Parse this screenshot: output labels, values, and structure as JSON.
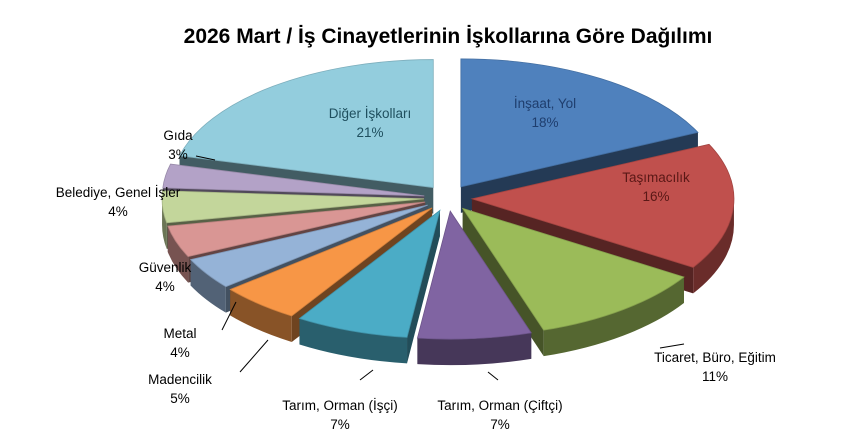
{
  "chart_data": {
    "type": "pie",
    "style": "3d-exploded",
    "title": "2026 Mart / İş Cinayetlerinin İşkollarına Göre Dağılımı",
    "slices": [
      {
        "label": "İnşaat, Yol",
        "value": 18,
        "value_label": "18%",
        "color": "#4F81BD"
      },
      {
        "label": "Taşımacılık",
        "value": 16,
        "value_label": "16%",
        "color": "#C0504D"
      },
      {
        "label": "Ticaret, Büro, Eğitim",
        "value": 11,
        "value_label": "11%",
        "color": "#9BBB59"
      },
      {
        "label": "Tarım, Orman (Çiftçi)",
        "value": 7,
        "value_label": "7%",
        "color": "#8064A2"
      },
      {
        "label": "Tarım, Orman (İşçi)",
        "value": 7,
        "value_label": "7%",
        "color": "#4BACC6"
      },
      {
        "label": "Madencilik",
        "value": 5,
        "value_label": "5%",
        "color": "#F79646"
      },
      {
        "label": "Metal",
        "value": 4,
        "value_label": "4%",
        "color": "#95B3D7"
      },
      {
        "label": "Güvenlik",
        "value": 4,
        "value_label": "4%",
        "color": "#D99694"
      },
      {
        "label": "Belediye, Genel İşler",
        "value": 4,
        "value_label": "4%",
        "color": "#C3D69B"
      },
      {
        "label": "Gıda",
        "value": 3,
        "value_label": "3%",
        "color": "#B3A2C7"
      },
      {
        "label": "Diğer İşkolları",
        "value": 21,
        "value_label": "21%",
        "color": "#93CDDD"
      }
    ]
  }
}
